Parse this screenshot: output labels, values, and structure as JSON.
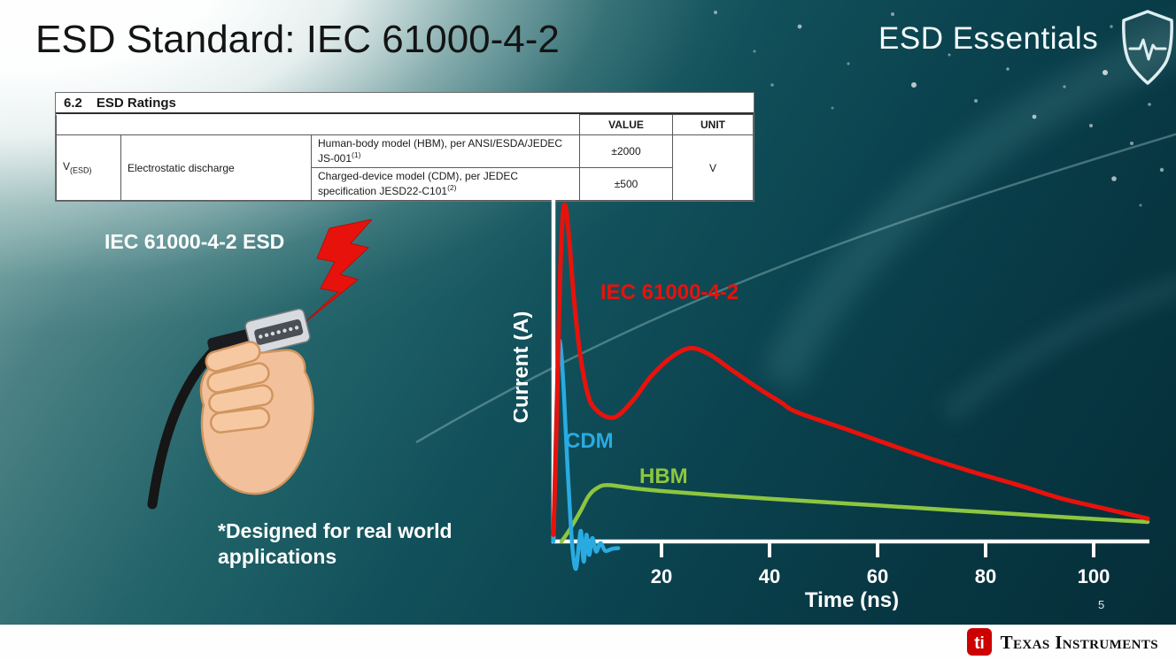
{
  "slide": {
    "title": "ESD Standard: IEC 61000-4-2",
    "series_name": "ESD Essentials",
    "page_number": "5"
  },
  "table": {
    "section_number": "6.2",
    "section_title": "ESD Ratings",
    "headers": {
      "value": "VALUE",
      "unit": "UNIT"
    },
    "symbol_base": "V",
    "symbol_sub": "(ESD)",
    "parameter": "Electrostatic discharge",
    "rows": [
      {
        "description": "Human-body model (HBM), per ANSI/ESDA/JEDEC JS-001",
        "footnote": "(1)",
        "value": "±2000"
      },
      {
        "description": "Charged-device model (CDM), per JEDEC specification JESD22-C101",
        "footnote": "(2)",
        "value": "±500"
      }
    ],
    "unit": "V"
  },
  "illustration": {
    "label": "IEC 61000-4-2 ESD",
    "note": "*Designed for real world applications"
  },
  "chart_data": {
    "type": "line",
    "title": "",
    "xlabel": "Time (ns)",
    "ylabel": "Current (A)",
    "xlim": [
      0,
      110
    ],
    "ylim": [
      -0.1,
      1.05
    ],
    "x_ticks": [
      20,
      40,
      60,
      80,
      100
    ],
    "grid": false,
    "legend": "inline labels on curves",
    "series": [
      {
        "name": "IEC 61000-4-2",
        "color": "#e8120c",
        "points": [
          [
            0,
            0.02
          ],
          [
            0.5,
            0.3
          ],
          [
            1.0,
            0.66
          ],
          [
            1.6,
            0.94
          ],
          [
            2.2,
            1.0
          ],
          [
            2.9,
            0.9
          ],
          [
            3.8,
            0.72
          ],
          [
            5,
            0.55
          ],
          [
            6.5,
            0.43
          ],
          [
            8,
            0.39
          ],
          [
            10,
            0.37
          ],
          [
            12,
            0.375
          ],
          [
            15,
            0.425
          ],
          [
            18,
            0.49
          ],
          [
            22,
            0.55
          ],
          [
            25.5,
            0.575
          ],
          [
            29,
            0.555
          ],
          [
            33,
            0.51
          ],
          [
            38,
            0.455
          ],
          [
            42,
            0.415
          ],
          [
            45,
            0.385
          ],
          [
            54,
            0.335
          ],
          [
            61,
            0.295
          ],
          [
            70,
            0.245
          ],
          [
            78,
            0.205
          ],
          [
            86,
            0.168
          ],
          [
            94,
            0.128
          ],
          [
            102,
            0.098
          ],
          [
            110,
            0.068
          ]
        ]
      },
      {
        "name": "CDM",
        "color": "#29abe2",
        "points": [
          [
            0,
            0.0
          ],
          [
            0.4,
            0.3
          ],
          [
            0.9,
            0.56
          ],
          [
            1.3,
            0.585
          ],
          [
            1.9,
            0.45
          ],
          [
            2.6,
            0.22
          ],
          [
            3.2,
            0.05
          ],
          [
            3.7,
            -0.05
          ],
          [
            4.2,
            -0.08
          ],
          [
            4.7,
            -0.01
          ],
          [
            5.1,
            0.03
          ],
          [
            5.6,
            -0.06
          ],
          [
            6.1,
            0.02
          ],
          [
            6.6,
            -0.04
          ],
          [
            7.2,
            0.01
          ],
          [
            7.9,
            -0.03
          ],
          [
            8.7,
            -0.005
          ],
          [
            9.6,
            -0.028
          ],
          [
            10.8,
            -0.022
          ],
          [
            12,
            -0.02
          ]
        ]
      },
      {
        "name": "HBM",
        "color": "#8dc63f",
        "points": [
          [
            1.5,
            0.0
          ],
          [
            3,
            0.035
          ],
          [
            5,
            0.09
          ],
          [
            6.5,
            0.135
          ],
          [
            8,
            0.158
          ],
          [
            10,
            0.168
          ],
          [
            15,
            0.158
          ],
          [
            20,
            0.15
          ],
          [
            30,
            0.138
          ],
          [
            40,
            0.127
          ],
          [
            50,
            0.117
          ],
          [
            60,
            0.107
          ],
          [
            70,
            0.097
          ],
          [
            80,
            0.087
          ],
          [
            90,
            0.077
          ],
          [
            100,
            0.067
          ],
          [
            110,
            0.058
          ]
        ]
      }
    ]
  },
  "footer": {
    "logo_text": "Texas Instruments"
  },
  "colors": {
    "iec_red": "#e8120c",
    "cdm_blue": "#29abe2",
    "hbm_green": "#8dc63f",
    "ti_red": "#cc0000",
    "slide_teal": "#0a424e"
  }
}
